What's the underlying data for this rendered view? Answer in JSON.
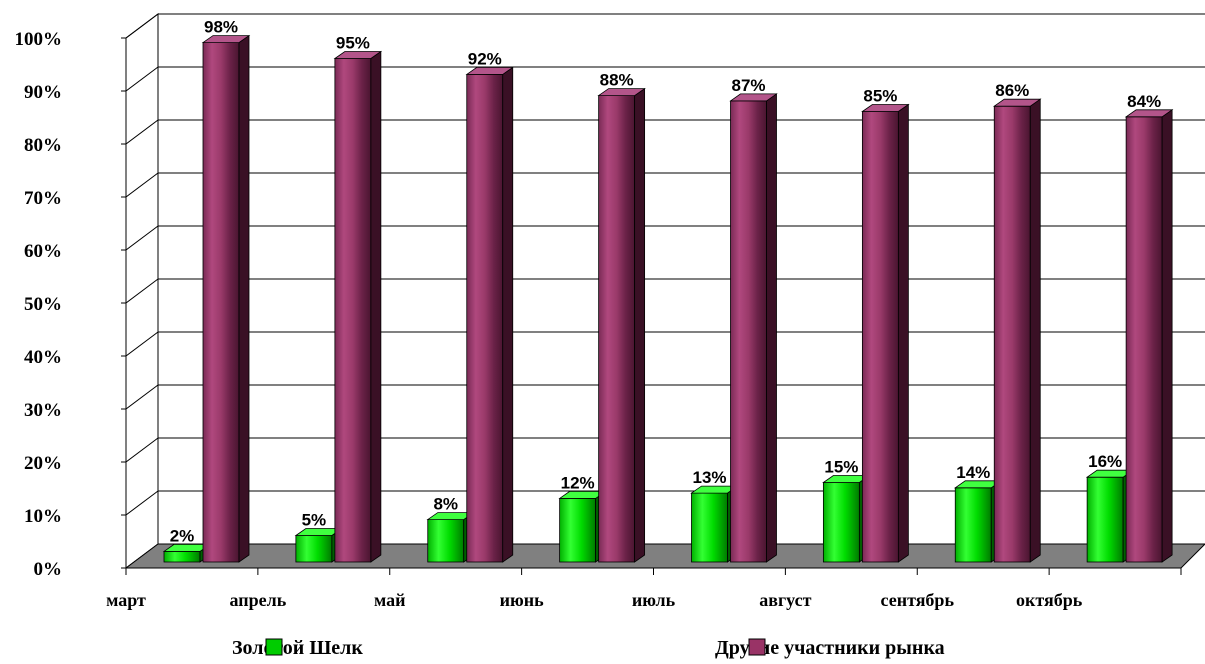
{
  "chart_data": {
    "type": "bar",
    "categories": [
      "март",
      "апрель",
      "май",
      "июнь",
      "июль",
      "август",
      "сентябрь",
      "октябрь"
    ],
    "series": [
      {
        "name": "Золотой Шелк",
        "values": [
          2,
          5,
          8,
          12,
          13,
          15,
          14,
          16
        ],
        "color": "#00cc00"
      },
      {
        "name": "Другие участники рынка",
        "values": [
          98,
          95,
          92,
          88,
          87,
          85,
          86,
          84
        ],
        "color": "#993366"
      }
    ],
    "y_ticks": [
      "0%",
      "10%",
      "20%",
      "30%",
      "40%",
      "50%",
      "60%",
      "70%",
      "80%",
      "90%",
      "100%"
    ],
    "data_labels": [
      [
        "2%",
        "5%",
        "8%",
        "12%",
        "13%",
        "15%",
        "14%",
        "16%"
      ],
      [
        "98%",
        "95%",
        "92%",
        "88%",
        "87%",
        "85%",
        "86%",
        "84%"
      ]
    ],
    "ylim": [
      0,
      100
    ],
    "value_suffix": "%",
    "grid": true,
    "three_d": true,
    "legend_position": "bottom",
    "title": "",
    "xlabel": "",
    "ylabel": ""
  }
}
